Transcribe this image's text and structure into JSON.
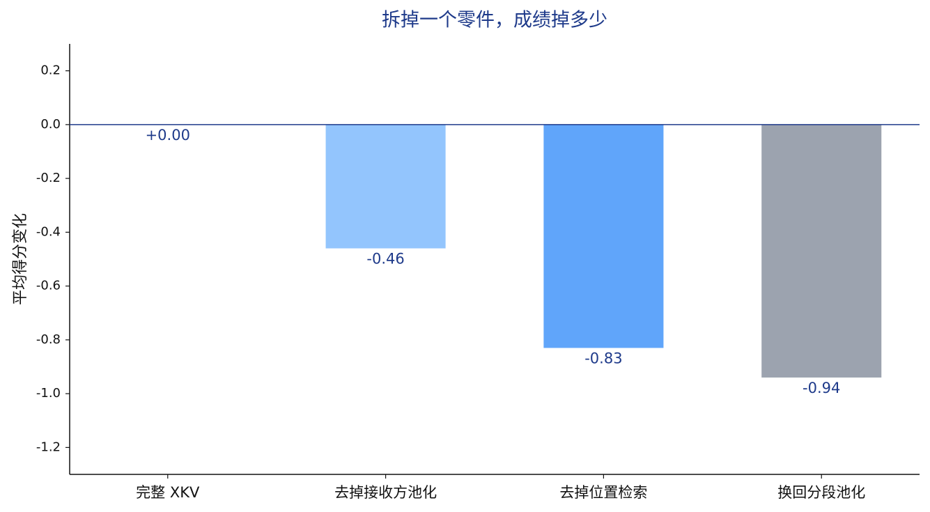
{
  "chart_data": {
    "type": "bar",
    "title": "拆掉一个零件，成绩掉多少",
    "y_label": "平均得分变化",
    "categories": [
      "完整 XKV",
      "去掉接收方池化",
      "去掉位置检索",
      "换回分段池化"
    ],
    "values": [
      0,
      -0.46,
      -0.83,
      -0.94
    ],
    "value_labels": [
      "+0.00",
      "-0.46",
      "-0.83",
      "-0.94"
    ],
    "colors": [
      "#1e3a8a",
      "#93c5fd",
      "#60a5fa",
      "#9ca3af"
    ],
    "ylim": [
      -1.3,
      0.3
    ],
    "yticks": [
      0.2,
      {
        "value": 0,
        "label": "0.0"
      },
      -0.2,
      -0.4,
      -0.6,
      -0.8,
      {
        "value": -1,
        "label": "-1.0"
      },
      -1.2
    ]
  }
}
